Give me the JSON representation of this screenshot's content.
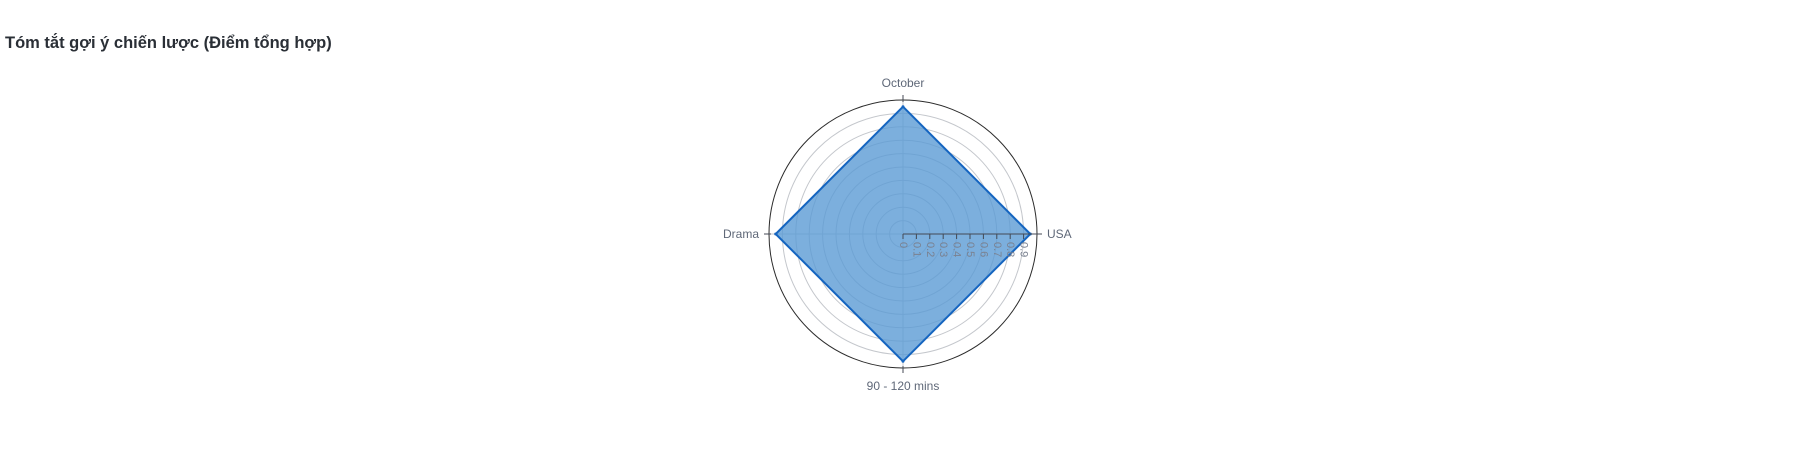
{
  "chart_data": {
    "type": "radar",
    "title": "Tóm tắt gợi ý chiến lược (Điểm tổng hợp)",
    "axes": [
      "October",
      "USA",
      "90 - 120 mins",
      "Drama"
    ],
    "series": [
      {
        "values": [
          0.95,
          0.95,
          0.95,
          0.95
        ]
      }
    ],
    "radial_range": [
      0,
      1
    ],
    "radial_ticks": [
      "0",
      "0.1",
      "0.2",
      "0.3",
      "0.4",
      "0.5",
      "0.6",
      "0.7",
      "0.8",
      "0.9"
    ],
    "grid": true,
    "colors": {
      "fill": "#5b9bd5",
      "stroke": "#1565c0",
      "grid": "#c4c7cc",
      "outer_ring": "#2b2b2b"
    }
  }
}
